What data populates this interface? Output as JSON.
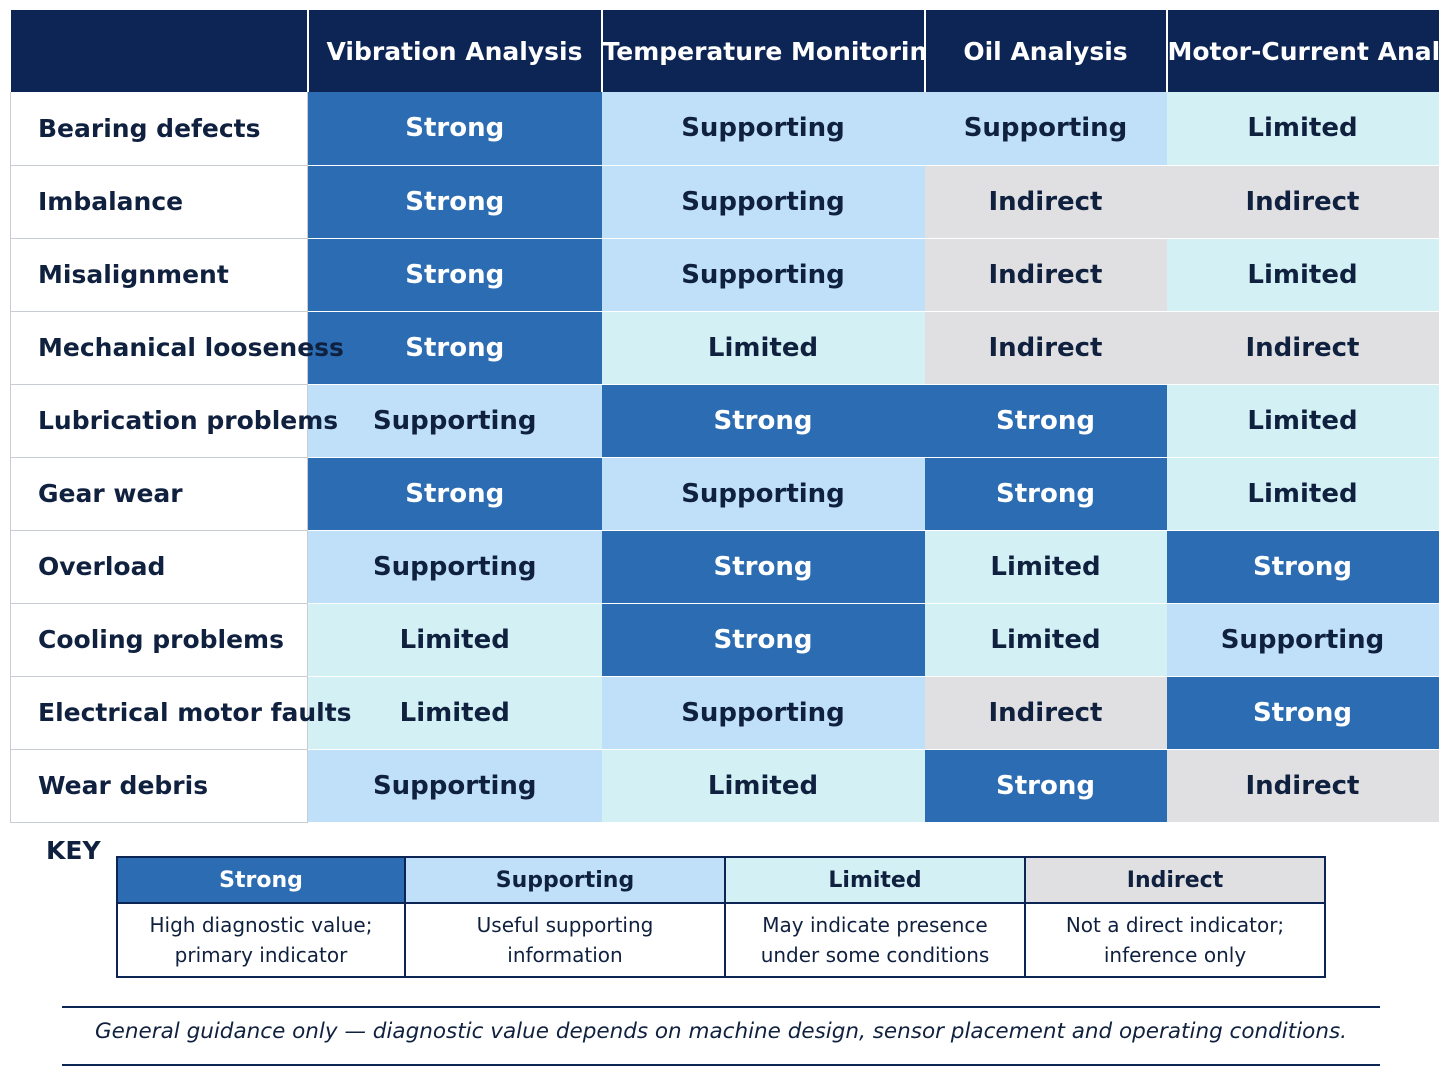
{
  "header": {
    "columns": [
      "Vibration Analysis",
      "Temperature Monitoring",
      "Oil Analysis",
      "Motor-Current Analysis"
    ]
  },
  "rows": [
    {
      "label": "Bearing defects",
      "cells": [
        "Strong",
        "Supporting",
        "Supporting",
        "Limited"
      ]
    },
    {
      "label": "Imbalance",
      "cells": [
        "Strong",
        "Supporting",
        "Indirect",
        "Indirect"
      ]
    },
    {
      "label": "Misalignment",
      "cells": [
        "Strong",
        "Supporting",
        "Indirect",
        "Limited"
      ]
    },
    {
      "label": "Mechanical looseness",
      "cells": [
        "Strong",
        "Limited",
        "Indirect",
        "Indirect"
      ]
    },
    {
      "label": "Lubrication problems",
      "cells": [
        "Supporting",
        "Strong",
        "Strong",
        "Limited"
      ]
    },
    {
      "label": "Gear wear",
      "cells": [
        "Strong",
        "Supporting",
        "Strong",
        "Limited"
      ]
    },
    {
      "label": "Overload",
      "cells": [
        "Supporting",
        "Strong",
        "Limited",
        "Strong"
      ]
    },
    {
      "label": "Cooling problems",
      "cells": [
        "Limited",
        "Strong",
        "Limited",
        "Supporting"
      ]
    },
    {
      "label": "Electrical motor faults",
      "cells": [
        "Limited",
        "Supporting",
        "Indirect",
        "Strong"
      ]
    },
    {
      "label": "Wear debris",
      "cells": [
        "Supporting",
        "Limited",
        "Strong",
        "Indirect"
      ]
    }
  ],
  "key": {
    "title": "KEY",
    "items": [
      {
        "label": "Strong",
        "line1": "High diagnostic value;",
        "line2": "primary indicator"
      },
      {
        "label": "Supporting",
        "line1": "Useful supporting",
        "line2": "information"
      },
      {
        "label": "Limited",
        "line1": "May indicate presence",
        "line2": "under some conditions"
      },
      {
        "label": "Indirect",
        "line1": "Not a direct indicator;",
        "line2": "inference only"
      }
    ]
  },
  "colors": {
    "header_bg": "#0c2555",
    "strong": "#2b6cb3",
    "supporting": "#bfe0f8",
    "limited": "#d3f0f4",
    "indirect": "#e0e0e2"
  },
  "footnote": "General guidance only — diagnostic value depends on machine design, sensor placement and operating conditions."
}
